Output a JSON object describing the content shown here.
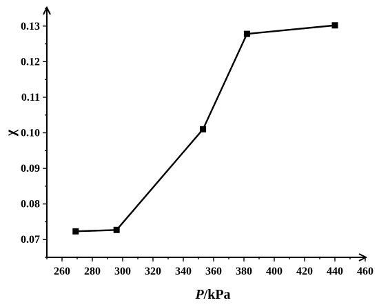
{
  "chart_data": {
    "type": "line",
    "xlabel_italic": "P",
    "xlabel_rest": "/kPa",
    "ylabel": "χ",
    "xlim": [
      250,
      460
    ],
    "ylim": [
      0.065,
      0.135
    ],
    "x_ticks": [
      "260",
      "280",
      "300",
      "320",
      "340",
      "360",
      "380",
      "400",
      "420",
      "440",
      "460"
    ],
    "y_ticks": [
      "0.07",
      "0.08",
      "0.09",
      "0.10",
      "0.11",
      "0.12",
      "0.13"
    ],
    "x_tick_values": [
      260,
      280,
      300,
      320,
      340,
      360,
      380,
      400,
      420,
      440,
      460
    ],
    "y_tick_values": [
      0.07,
      0.08,
      0.09,
      0.1,
      0.11,
      0.12,
      0.13
    ],
    "series": [
      {
        "marker": "square",
        "color": "#000000",
        "x": [
          269,
          296,
          353,
          382,
          440
        ],
        "y": [
          0.0723,
          0.0727,
          0.101,
          0.1278,
          0.1302
        ]
      }
    ]
  }
}
